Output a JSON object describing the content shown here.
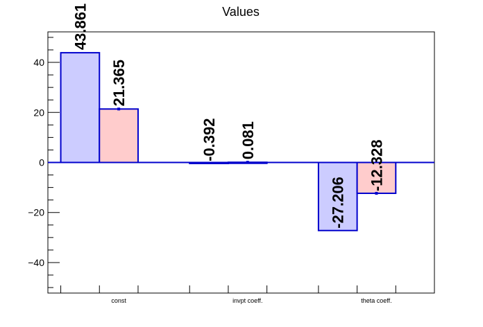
{
  "chart_data": {
    "type": "bar",
    "title": "Values",
    "categories": [
      "const",
      "invpt coeff.",
      "theta coeff."
    ],
    "series": [
      {
        "values": [
          43.861,
          -0.392,
          -27.206
        ],
        "color": "#ccccff",
        "stroke": "#0000cc"
      },
      {
        "values": [
          21.365,
          0.081,
          -12.328
        ],
        "color": "#ffcccc",
        "stroke": "#0000cc"
      }
    ],
    "data_labels": [
      [
        "43.861",
        "-0.392",
        "-27.206"
      ],
      [
        "21.365",
        "0.081",
        "-12.328"
      ]
    ],
    "ylim": [
      -52.2,
      52.2
    ],
    "yticks": [
      -40,
      -20,
      0,
      20,
      40
    ],
    "ytick_labels": [
      "−40",
      "−20",
      "0",
      "20",
      "40"
    ],
    "grid": false,
    "legend": "none"
  }
}
